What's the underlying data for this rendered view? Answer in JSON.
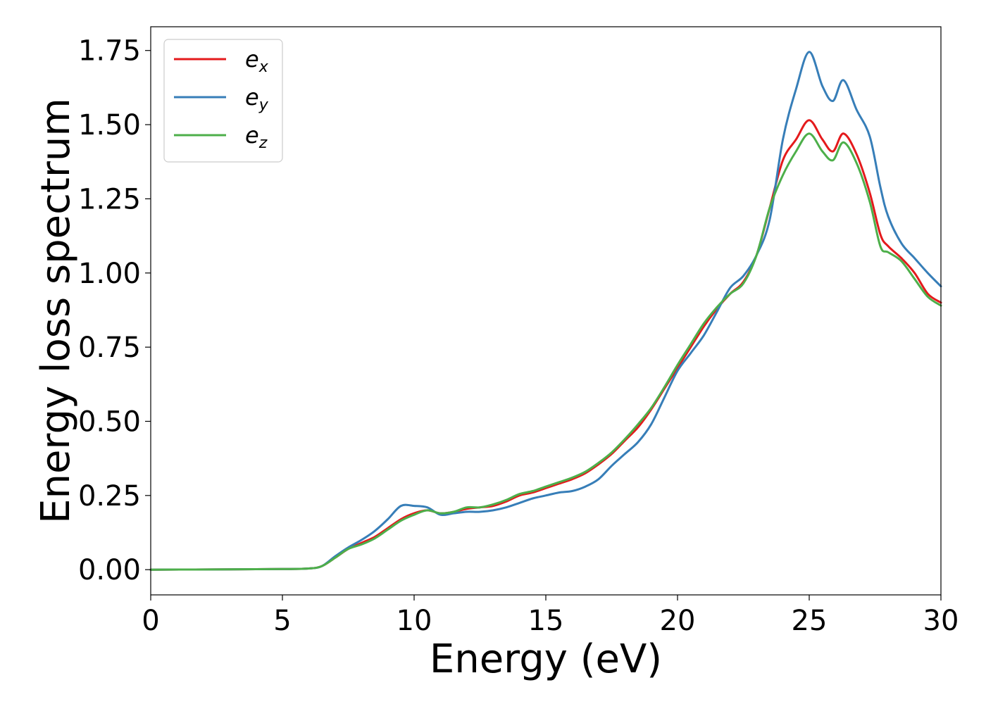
{
  "chart_data": {
    "type": "line",
    "xlabel": "Energy (eV)",
    "ylabel": "Energy loss spectrum",
    "xlim": [
      0,
      30
    ],
    "ylim": [
      -0.085,
      1.83
    ],
    "xticks": [
      0,
      5,
      10,
      15,
      20,
      25,
      30
    ],
    "xtick_labels": [
      "0",
      "5",
      "10",
      "15",
      "20",
      "25",
      "30"
    ],
    "yticks": [
      0,
      0.25,
      0.5,
      0.75,
      1.0,
      1.25,
      1.5,
      1.75
    ],
    "ytick_labels": [
      "0.00",
      "0.25",
      "0.50",
      "0.75",
      "1.00",
      "1.25",
      "1.50",
      "1.75"
    ],
    "grid": false,
    "legend_position": "top-left",
    "series": [
      {
        "name": "e_x",
        "base": "e",
        "sub": "x",
        "color": "#e41a1c",
        "x": [
          0,
          3,
          5,
          6,
          6.5,
          7,
          7.5,
          8,
          8.5,
          9,
          9.5,
          10,
          10.5,
          11,
          11.5,
          12,
          12.5,
          13,
          13.5,
          14,
          14.5,
          15,
          15.5,
          16,
          16.5,
          17,
          17.5,
          18,
          18.5,
          19,
          19.5,
          20,
          20.5,
          21,
          21.5,
          22,
          22.5,
          23,
          23.5,
          24,
          24.5,
          25,
          25.5,
          25.9,
          26.3,
          26.8,
          27.3,
          27.7,
          28,
          28.5,
          29,
          29.5,
          30
        ],
        "y": [
          0,
          0.001,
          0.002,
          0.004,
          0.012,
          0.04,
          0.07,
          0.09,
          0.11,
          0.14,
          0.17,
          0.19,
          0.2,
          0.19,
          0.195,
          0.205,
          0.21,
          0.215,
          0.23,
          0.25,
          0.26,
          0.275,
          0.29,
          0.305,
          0.325,
          0.355,
          0.39,
          0.435,
          0.48,
          0.54,
          0.61,
          0.68,
          0.75,
          0.82,
          0.88,
          0.93,
          0.97,
          1.06,
          1.22,
          1.38,
          1.45,
          1.515,
          1.45,
          1.41,
          1.47,
          1.4,
          1.27,
          1.13,
          1.09,
          1.05,
          1.0,
          0.93,
          0.9
        ]
      },
      {
        "name": "e_y",
        "base": "e",
        "sub": "y",
        "color": "#377eb8",
        "x": [
          0,
          3,
          5,
          6,
          6.5,
          7,
          7.5,
          8,
          8.5,
          9,
          9.5,
          10,
          10.5,
          11,
          11.5,
          12,
          12.5,
          13,
          13.5,
          14,
          14.5,
          15,
          15.5,
          16,
          16.5,
          17,
          17.5,
          18,
          18.5,
          19,
          19.5,
          20,
          20.5,
          21,
          21.5,
          22,
          22.5,
          23,
          23.5,
          24,
          24.5,
          25,
          25.5,
          25.9,
          26.3,
          26.8,
          27.3,
          27.7,
          28,
          28.5,
          29,
          29.5,
          30
        ],
        "y": [
          0,
          0.001,
          0.002,
          0.004,
          0.012,
          0.045,
          0.075,
          0.1,
          0.13,
          0.17,
          0.215,
          0.215,
          0.21,
          0.185,
          0.19,
          0.195,
          0.195,
          0.2,
          0.21,
          0.225,
          0.24,
          0.25,
          0.26,
          0.265,
          0.28,
          0.305,
          0.35,
          0.39,
          0.43,
          0.49,
          0.58,
          0.67,
          0.73,
          0.79,
          0.87,
          0.95,
          0.99,
          1.06,
          1.18,
          1.45,
          1.62,
          1.745,
          1.63,
          1.58,
          1.65,
          1.55,
          1.46,
          1.29,
          1.19,
          1.1,
          1.05,
          1.0,
          0.955
        ]
      },
      {
        "name": "e_z",
        "base": "e",
        "sub": "z",
        "color": "#4daf4a",
        "x": [
          0,
          3,
          5,
          6,
          6.5,
          7,
          7.5,
          8,
          8.5,
          9,
          9.5,
          10,
          10.5,
          11,
          11.5,
          12,
          12.5,
          13,
          13.5,
          14,
          14.5,
          15,
          15.5,
          16,
          16.5,
          17,
          17.5,
          18,
          18.5,
          19,
          19.5,
          20,
          20.5,
          21,
          21.5,
          22,
          22.5,
          23,
          23.5,
          24,
          24.5,
          25,
          25.5,
          25.9,
          26.3,
          26.8,
          27.3,
          27.7,
          28,
          28.5,
          29,
          29.5,
          30
        ],
        "y": [
          0,
          0.001,
          0.002,
          0.004,
          0.012,
          0.04,
          0.07,
          0.085,
          0.105,
          0.135,
          0.165,
          0.185,
          0.2,
          0.19,
          0.195,
          0.21,
          0.21,
          0.22,
          0.235,
          0.255,
          0.265,
          0.28,
          0.295,
          0.31,
          0.33,
          0.36,
          0.395,
          0.44,
          0.49,
          0.545,
          0.615,
          0.69,
          0.76,
          0.83,
          0.885,
          0.93,
          0.965,
          1.06,
          1.22,
          1.33,
          1.41,
          1.47,
          1.41,
          1.38,
          1.44,
          1.37,
          1.24,
          1.09,
          1.07,
          1.04,
          0.98,
          0.92,
          0.89
        ]
      }
    ]
  }
}
